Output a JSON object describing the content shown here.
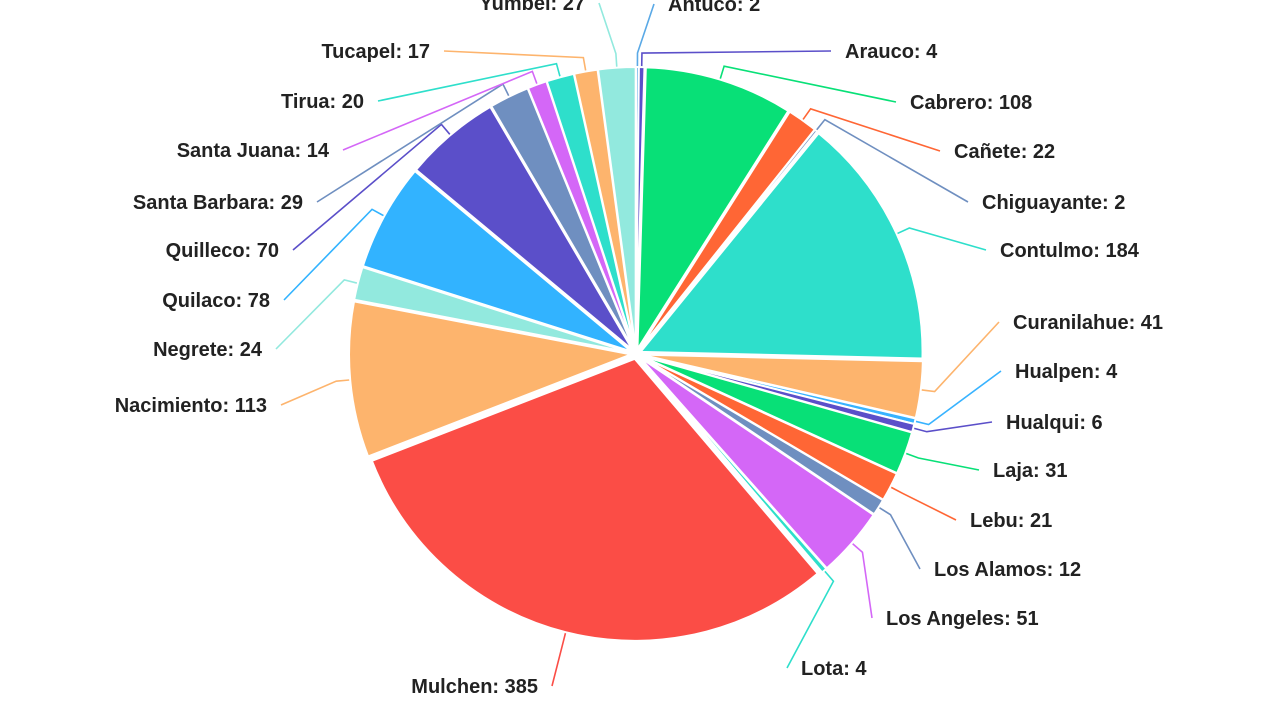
{
  "chart_data": {
    "type": "pie",
    "slices": [
      {
        "label": "Antuco",
        "value": 2,
        "color": "#5aa9e6"
      },
      {
        "label": "Arauco",
        "value": 4,
        "color": "#5b4fc9"
      },
      {
        "label": "Cabrero",
        "value": 108,
        "color": "#08e077"
      },
      {
        "label": "Cañete",
        "value": 22,
        "color": "#ff6635"
      },
      {
        "label": "Chiguayante",
        "value": 2,
        "color": "#6f8fc0"
      },
      {
        "label": "Contulmo",
        "value": 184,
        "color": "#2edfcb"
      },
      {
        "label": "Curanilahue",
        "value": 41,
        "color": "#fdb46d"
      },
      {
        "label": "Hualpen",
        "value": 4,
        "color": "#38b3ff"
      },
      {
        "label": "Hualqui",
        "value": 6,
        "color": "#5b4fc9"
      },
      {
        "label": "Laja",
        "value": 31,
        "color": "#08e077"
      },
      {
        "label": "Lebu",
        "value": 21,
        "color": "#ff6635"
      },
      {
        "label": "Los Alamos",
        "value": 12,
        "color": "#6f8fc0"
      },
      {
        "label": "Los Angeles",
        "value": 51,
        "color": "#d467f7"
      },
      {
        "label": "Lota",
        "value": 4,
        "color": "#2edfcb"
      },
      {
        "label": "Mulchen",
        "value": 385,
        "color": "#fb4d46"
      },
      {
        "label": "Nacimiento",
        "value": 113,
        "color": "#fdb46d"
      },
      {
        "label": "Negrete",
        "value": 24,
        "color": "#92e9de"
      },
      {
        "label": "Quilaco",
        "value": 78,
        "color": "#32b3ff"
      },
      {
        "label": "Quilleco",
        "value": 70,
        "color": "#5b4fc9"
      },
      {
        "label": "Santa Barbara",
        "value": 29,
        "color": "#6f8fc0"
      },
      {
        "label": "Santa Juana",
        "value": 14,
        "color": "#d467f7"
      },
      {
        "label": "Tirua",
        "value": 20,
        "color": "#2edfcb"
      },
      {
        "label": "Tucapel",
        "value": 17,
        "color": "#fdb46d"
      },
      {
        "label": "Yumbel",
        "value": 27,
        "color": "#92e9de"
      }
    ]
  }
}
